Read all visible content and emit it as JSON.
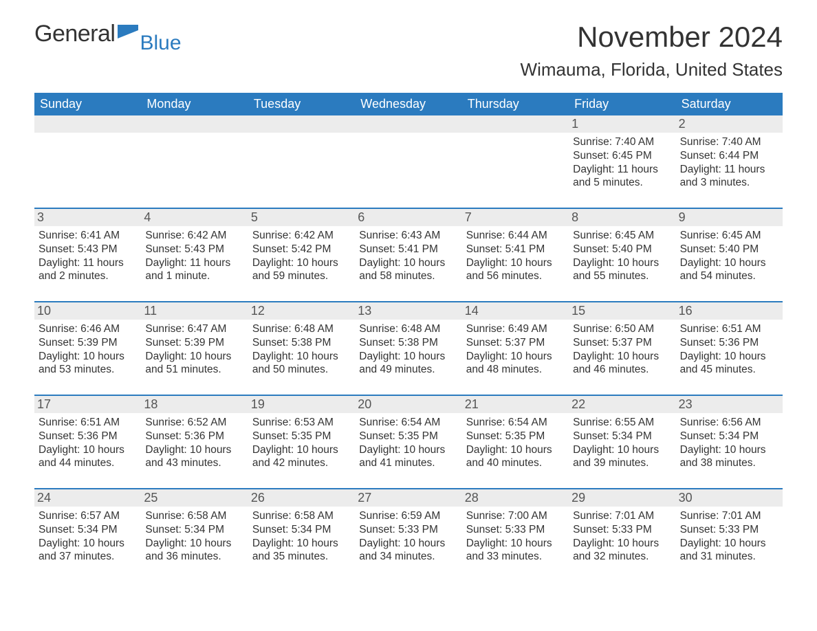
{
  "logo": {
    "text1": "General",
    "text2": "Blue",
    "icon_color": "#2b7bbf"
  },
  "title": "November 2024",
  "location": "Wimauma, Florida, United States",
  "header_bg": "#2b7bbf",
  "header_fg": "#ffffff",
  "daynum_bg": "#ececec",
  "border_color": "#2b7bbf",
  "text_color": "#333333",
  "weekdays": [
    "Sunday",
    "Monday",
    "Tuesday",
    "Wednesday",
    "Thursday",
    "Friday",
    "Saturday"
  ],
  "weeks": [
    [
      {
        "day": "",
        "sunrise": "",
        "sunset": "",
        "daylight": ""
      },
      {
        "day": "",
        "sunrise": "",
        "sunset": "",
        "daylight": ""
      },
      {
        "day": "",
        "sunrise": "",
        "sunset": "",
        "daylight": ""
      },
      {
        "day": "",
        "sunrise": "",
        "sunset": "",
        "daylight": ""
      },
      {
        "day": "",
        "sunrise": "",
        "sunset": "",
        "daylight": ""
      },
      {
        "day": "1",
        "sunrise": "Sunrise: 7:40 AM",
        "sunset": "Sunset: 6:45 PM",
        "daylight": "Daylight: 11 hours and 5 minutes."
      },
      {
        "day": "2",
        "sunrise": "Sunrise: 7:40 AM",
        "sunset": "Sunset: 6:44 PM",
        "daylight": "Daylight: 11 hours and 3 minutes."
      }
    ],
    [
      {
        "day": "3",
        "sunrise": "Sunrise: 6:41 AM",
        "sunset": "Sunset: 5:43 PM",
        "daylight": "Daylight: 11 hours and 2 minutes."
      },
      {
        "day": "4",
        "sunrise": "Sunrise: 6:42 AM",
        "sunset": "Sunset: 5:43 PM",
        "daylight": "Daylight: 11 hours and 1 minute."
      },
      {
        "day": "5",
        "sunrise": "Sunrise: 6:42 AM",
        "sunset": "Sunset: 5:42 PM",
        "daylight": "Daylight: 10 hours and 59 minutes."
      },
      {
        "day": "6",
        "sunrise": "Sunrise: 6:43 AM",
        "sunset": "Sunset: 5:41 PM",
        "daylight": "Daylight: 10 hours and 58 minutes."
      },
      {
        "day": "7",
        "sunrise": "Sunrise: 6:44 AM",
        "sunset": "Sunset: 5:41 PM",
        "daylight": "Daylight: 10 hours and 56 minutes."
      },
      {
        "day": "8",
        "sunrise": "Sunrise: 6:45 AM",
        "sunset": "Sunset: 5:40 PM",
        "daylight": "Daylight: 10 hours and 55 minutes."
      },
      {
        "day": "9",
        "sunrise": "Sunrise: 6:45 AM",
        "sunset": "Sunset: 5:40 PM",
        "daylight": "Daylight: 10 hours and 54 minutes."
      }
    ],
    [
      {
        "day": "10",
        "sunrise": "Sunrise: 6:46 AM",
        "sunset": "Sunset: 5:39 PM",
        "daylight": "Daylight: 10 hours and 53 minutes."
      },
      {
        "day": "11",
        "sunrise": "Sunrise: 6:47 AM",
        "sunset": "Sunset: 5:39 PM",
        "daylight": "Daylight: 10 hours and 51 minutes."
      },
      {
        "day": "12",
        "sunrise": "Sunrise: 6:48 AM",
        "sunset": "Sunset: 5:38 PM",
        "daylight": "Daylight: 10 hours and 50 minutes."
      },
      {
        "day": "13",
        "sunrise": "Sunrise: 6:48 AM",
        "sunset": "Sunset: 5:38 PM",
        "daylight": "Daylight: 10 hours and 49 minutes."
      },
      {
        "day": "14",
        "sunrise": "Sunrise: 6:49 AM",
        "sunset": "Sunset: 5:37 PM",
        "daylight": "Daylight: 10 hours and 48 minutes."
      },
      {
        "day": "15",
        "sunrise": "Sunrise: 6:50 AM",
        "sunset": "Sunset: 5:37 PM",
        "daylight": "Daylight: 10 hours and 46 minutes."
      },
      {
        "day": "16",
        "sunrise": "Sunrise: 6:51 AM",
        "sunset": "Sunset: 5:36 PM",
        "daylight": "Daylight: 10 hours and 45 minutes."
      }
    ],
    [
      {
        "day": "17",
        "sunrise": "Sunrise: 6:51 AM",
        "sunset": "Sunset: 5:36 PM",
        "daylight": "Daylight: 10 hours and 44 minutes."
      },
      {
        "day": "18",
        "sunrise": "Sunrise: 6:52 AM",
        "sunset": "Sunset: 5:36 PM",
        "daylight": "Daylight: 10 hours and 43 minutes."
      },
      {
        "day": "19",
        "sunrise": "Sunrise: 6:53 AM",
        "sunset": "Sunset: 5:35 PM",
        "daylight": "Daylight: 10 hours and 42 minutes."
      },
      {
        "day": "20",
        "sunrise": "Sunrise: 6:54 AM",
        "sunset": "Sunset: 5:35 PM",
        "daylight": "Daylight: 10 hours and 41 minutes."
      },
      {
        "day": "21",
        "sunrise": "Sunrise: 6:54 AM",
        "sunset": "Sunset: 5:35 PM",
        "daylight": "Daylight: 10 hours and 40 minutes."
      },
      {
        "day": "22",
        "sunrise": "Sunrise: 6:55 AM",
        "sunset": "Sunset: 5:34 PM",
        "daylight": "Daylight: 10 hours and 39 minutes."
      },
      {
        "day": "23",
        "sunrise": "Sunrise: 6:56 AM",
        "sunset": "Sunset: 5:34 PM",
        "daylight": "Daylight: 10 hours and 38 minutes."
      }
    ],
    [
      {
        "day": "24",
        "sunrise": "Sunrise: 6:57 AM",
        "sunset": "Sunset: 5:34 PM",
        "daylight": "Daylight: 10 hours and 37 minutes."
      },
      {
        "day": "25",
        "sunrise": "Sunrise: 6:58 AM",
        "sunset": "Sunset: 5:34 PM",
        "daylight": "Daylight: 10 hours and 36 minutes."
      },
      {
        "day": "26",
        "sunrise": "Sunrise: 6:58 AM",
        "sunset": "Sunset: 5:34 PM",
        "daylight": "Daylight: 10 hours and 35 minutes."
      },
      {
        "day": "27",
        "sunrise": "Sunrise: 6:59 AM",
        "sunset": "Sunset: 5:33 PM",
        "daylight": "Daylight: 10 hours and 34 minutes."
      },
      {
        "day": "28",
        "sunrise": "Sunrise: 7:00 AM",
        "sunset": "Sunset: 5:33 PM",
        "daylight": "Daylight: 10 hours and 33 minutes."
      },
      {
        "day": "29",
        "sunrise": "Sunrise: 7:01 AM",
        "sunset": "Sunset: 5:33 PM",
        "daylight": "Daylight: 10 hours and 32 minutes."
      },
      {
        "day": "30",
        "sunrise": "Sunrise: 7:01 AM",
        "sunset": "Sunset: 5:33 PM",
        "daylight": "Daylight: 10 hours and 31 minutes."
      }
    ]
  ]
}
